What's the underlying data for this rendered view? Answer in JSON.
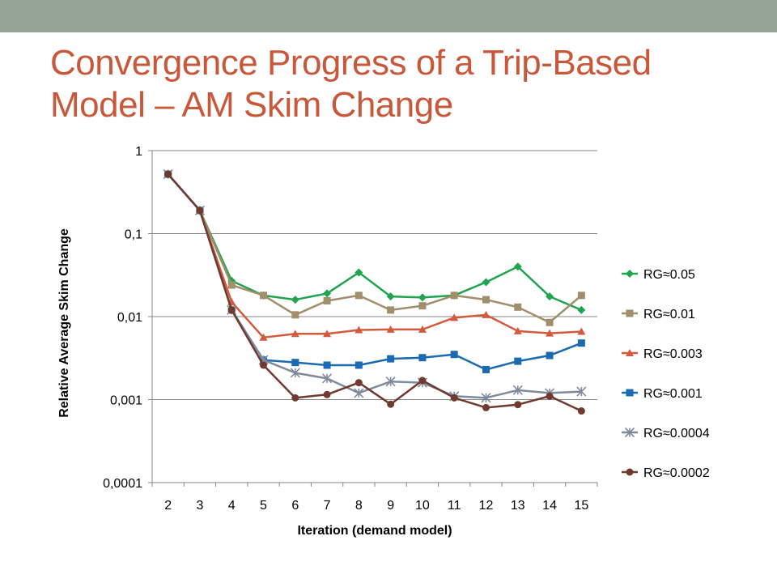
{
  "slide": {
    "title_line1": "Convergence Progress of a Trip-Based",
    "title_line2": "Model – AM Skim Change",
    "header_bar_color": "#94a596",
    "title_color": "#c9583a"
  },
  "chart_data": {
    "type": "line",
    "title": "",
    "xlabel": "Iteration (demand model)",
    "ylabel": "Relative Average Skim Change",
    "y_scale": "log",
    "ylim": [
      0.0001,
      1
    ],
    "y_ticks": [
      "1",
      "0,1",
      "0,01",
      "0,001",
      "0,0001"
    ],
    "y_tick_values": [
      1,
      0.1,
      0.01,
      0.001,
      0.0001
    ],
    "categories": [
      "2",
      "3",
      "4",
      "5",
      "6",
      "7",
      "8",
      "9",
      "10",
      "11",
      "12",
      "13",
      "14",
      "15"
    ],
    "grid": "horizontal",
    "legend_position": "right",
    "series": [
      {
        "name": "RG≈0.05",
        "color": "#21a44e",
        "marker": "diamond",
        "values": [
          0.52,
          0.19,
          0.027,
          0.018,
          0.016,
          0.019,
          0.034,
          0.0175,
          0.017,
          0.018,
          0.026,
          0.04,
          0.0175,
          0.012
        ]
      },
      {
        "name": "RG≈0.01",
        "color": "#a08f6a",
        "marker": "square",
        "values": [
          0.52,
          0.19,
          0.024,
          0.018,
          0.0105,
          0.0155,
          0.018,
          0.012,
          0.0135,
          0.018,
          0.016,
          0.013,
          0.0085,
          0.018
        ]
      },
      {
        "name": "RG≈0.003",
        "color": "#d35a3b",
        "marker": "triangle",
        "values": [
          0.52,
          0.19,
          0.015,
          0.0056,
          0.0062,
          0.0062,
          0.0069,
          0.007,
          0.007,
          0.0097,
          0.0105,
          0.0067,
          0.0063,
          0.0066
        ]
      },
      {
        "name": "RG≈0.001",
        "color": "#1a6bb0",
        "marker": "square",
        "values": [
          0.52,
          0.19,
          0.012,
          0.003,
          0.0028,
          0.0026,
          0.0026,
          0.0031,
          0.0032,
          0.0035,
          0.0023,
          0.0029,
          0.0034,
          0.0048
        ]
      },
      {
        "name": "RG≈0.0004",
        "color": "#7f8b9c",
        "marker": "star",
        "values": [
          0.52,
          0.19,
          0.012,
          0.003,
          0.0021,
          0.0018,
          0.0012,
          0.00165,
          0.0016,
          0.0011,
          0.00105,
          0.0013,
          0.0012,
          0.00125
        ]
      },
      {
        "name": "RG≈0.0002",
        "color": "#703a2f",
        "marker": "circle",
        "values": [
          0.52,
          0.19,
          0.012,
          0.0026,
          0.00105,
          0.00115,
          0.0016,
          0.00088,
          0.0017,
          0.00105,
          0.0008,
          0.00087,
          0.0011,
          0.00073
        ]
      }
    ]
  }
}
